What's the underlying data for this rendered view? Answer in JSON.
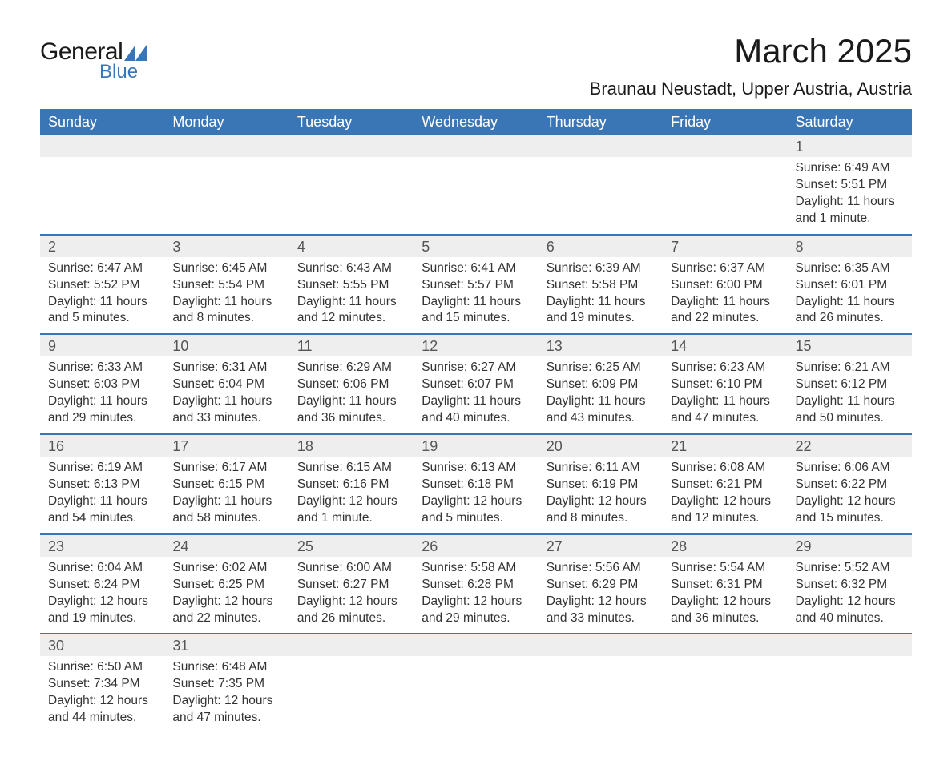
{
  "logo": {
    "text1": "General",
    "text2": "Blue",
    "shape_color": "#3a75b5"
  },
  "title": "March 2025",
  "location": "Braunau Neustadt, Upper Austria, Austria",
  "colors": {
    "header_bg": "#3a75b5",
    "header_fg": "#ffffff",
    "daynum_bg": "#eeeeee",
    "row_divider": "#3a75b5",
    "text": "#333333"
  },
  "typography": {
    "title_size_pt": 32,
    "location_size_pt": 17,
    "header_size_pt": 14,
    "cell_size_pt": 12
  },
  "weekdays": [
    "Sunday",
    "Monday",
    "Tuesday",
    "Wednesday",
    "Thursday",
    "Friday",
    "Saturday"
  ],
  "weeks": [
    {
      "nums": [
        "",
        "",
        "",
        "",
        "",
        "",
        "1"
      ],
      "details": [
        "",
        "",
        "",
        "",
        "",
        "",
        "Sunrise: 6:49 AM\nSunset: 5:51 PM\nDaylight: 11 hours and 1 minute."
      ]
    },
    {
      "nums": [
        "2",
        "3",
        "4",
        "5",
        "6",
        "7",
        "8"
      ],
      "details": [
        "Sunrise: 6:47 AM\nSunset: 5:52 PM\nDaylight: 11 hours and 5 minutes.",
        "Sunrise: 6:45 AM\nSunset: 5:54 PM\nDaylight: 11 hours and 8 minutes.",
        "Sunrise: 6:43 AM\nSunset: 5:55 PM\nDaylight: 11 hours and 12 minutes.",
        "Sunrise: 6:41 AM\nSunset: 5:57 PM\nDaylight: 11 hours and 15 minutes.",
        "Sunrise: 6:39 AM\nSunset: 5:58 PM\nDaylight: 11 hours and 19 minutes.",
        "Sunrise: 6:37 AM\nSunset: 6:00 PM\nDaylight: 11 hours and 22 minutes.",
        "Sunrise: 6:35 AM\nSunset: 6:01 PM\nDaylight: 11 hours and 26 minutes."
      ]
    },
    {
      "nums": [
        "9",
        "10",
        "11",
        "12",
        "13",
        "14",
        "15"
      ],
      "details": [
        "Sunrise: 6:33 AM\nSunset: 6:03 PM\nDaylight: 11 hours and 29 minutes.",
        "Sunrise: 6:31 AM\nSunset: 6:04 PM\nDaylight: 11 hours and 33 minutes.",
        "Sunrise: 6:29 AM\nSunset: 6:06 PM\nDaylight: 11 hours and 36 minutes.",
        "Sunrise: 6:27 AM\nSunset: 6:07 PM\nDaylight: 11 hours and 40 minutes.",
        "Sunrise: 6:25 AM\nSunset: 6:09 PM\nDaylight: 11 hours and 43 minutes.",
        "Sunrise: 6:23 AM\nSunset: 6:10 PM\nDaylight: 11 hours and 47 minutes.",
        "Sunrise: 6:21 AM\nSunset: 6:12 PM\nDaylight: 11 hours and 50 minutes."
      ]
    },
    {
      "nums": [
        "16",
        "17",
        "18",
        "19",
        "20",
        "21",
        "22"
      ],
      "details": [
        "Sunrise: 6:19 AM\nSunset: 6:13 PM\nDaylight: 11 hours and 54 minutes.",
        "Sunrise: 6:17 AM\nSunset: 6:15 PM\nDaylight: 11 hours and 58 minutes.",
        "Sunrise: 6:15 AM\nSunset: 6:16 PM\nDaylight: 12 hours and 1 minute.",
        "Sunrise: 6:13 AM\nSunset: 6:18 PM\nDaylight: 12 hours and 5 minutes.",
        "Sunrise: 6:11 AM\nSunset: 6:19 PM\nDaylight: 12 hours and 8 minutes.",
        "Sunrise: 6:08 AM\nSunset: 6:21 PM\nDaylight: 12 hours and 12 minutes.",
        "Sunrise: 6:06 AM\nSunset: 6:22 PM\nDaylight: 12 hours and 15 minutes."
      ]
    },
    {
      "nums": [
        "23",
        "24",
        "25",
        "26",
        "27",
        "28",
        "29"
      ],
      "details": [
        "Sunrise: 6:04 AM\nSunset: 6:24 PM\nDaylight: 12 hours and 19 minutes.",
        "Sunrise: 6:02 AM\nSunset: 6:25 PM\nDaylight: 12 hours and 22 minutes.",
        "Sunrise: 6:00 AM\nSunset: 6:27 PM\nDaylight: 12 hours and 26 minutes.",
        "Sunrise: 5:58 AM\nSunset: 6:28 PM\nDaylight: 12 hours and 29 minutes.",
        "Sunrise: 5:56 AM\nSunset: 6:29 PM\nDaylight: 12 hours and 33 minutes.",
        "Sunrise: 5:54 AM\nSunset: 6:31 PM\nDaylight: 12 hours and 36 minutes.",
        "Sunrise: 5:52 AM\nSunset: 6:32 PM\nDaylight: 12 hours and 40 minutes."
      ]
    },
    {
      "nums": [
        "30",
        "31",
        "",
        "",
        "",
        "",
        ""
      ],
      "details": [
        "Sunrise: 6:50 AM\nSunset: 7:34 PM\nDaylight: 12 hours and 44 minutes.",
        "Sunrise: 6:48 AM\nSunset: 7:35 PM\nDaylight: 12 hours and 47 minutes.",
        "",
        "",
        "",
        "",
        ""
      ]
    }
  ]
}
